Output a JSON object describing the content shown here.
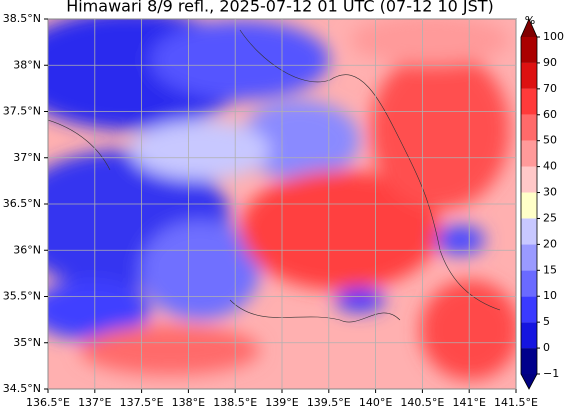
{
  "map": {
    "title": "Himawari 8/9 refl., 2025-07-12 01 UTC (07-12 10 JST)",
    "xlim": [
      136.5,
      141.5
    ],
    "xticks": [
      {
        "value": 136.5,
        "label": "136.5°E"
      },
      {
        "value": 137,
        "label": "137°E"
      },
      {
        "value": 137.5,
        "label": "137.5°E"
      },
      {
        "value": 138,
        "label": "138°E"
      },
      {
        "value": 138.5,
        "label": "138.5°E"
      },
      {
        "value": 139,
        "label": "139°E"
      },
      {
        "value": 139.5,
        "label": "139.5°E"
      },
      {
        "value": 140,
        "label": "140°E"
      },
      {
        "value": 140.5,
        "label": "140.5°E"
      },
      {
        "value": 141,
        "label": "141°E"
      },
      {
        "value": 141.5,
        "label": "141.5°E"
      }
    ],
    "ylim": [
      34.5,
      38.5
    ],
    "yticks": [
      {
        "value": 34.5,
        "label": "34.5°N"
      },
      {
        "value": 35,
        "label": "35°N"
      },
      {
        "value": 35.5,
        "label": "35.5°N"
      },
      {
        "value": 36,
        "label": "36°N"
      },
      {
        "value": 36.5,
        "label": "36.5°N"
      },
      {
        "value": 37,
        "label": "37°N"
      },
      {
        "value": 37.5,
        "label": "37.5°N"
      },
      {
        "value": 38,
        "label": "38°N"
      },
      {
        "value": 38.5,
        "label": "38.5°N"
      }
    ],
    "grid": true,
    "colorbar": {
      "unit": "%",
      "ticks": [
        {
          "value": -1,
          "label": "−1"
        },
        0,
        5,
        10,
        15,
        20,
        25,
        30,
        40,
        50,
        60,
        70,
        90,
        100
      ],
      "colors": [
        "#00008b",
        "#1515e0",
        "#3a3aff",
        "#6a6aff",
        "#9a9aff",
        "#c8c8ff",
        "#ffffc8",
        "#ffc8c8",
        "#ff9a9a",
        "#ff6a6a",
        "#ff3a3a",
        "#dd1111",
        "#aa0000"
      ],
      "under_color": "#000080",
      "over_color": "#800000"
    }
  }
}
